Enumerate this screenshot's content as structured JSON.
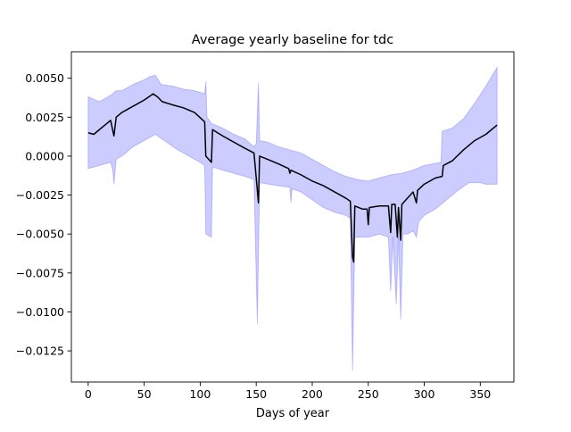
{
  "chart_data": {
    "type": "line",
    "title": "Average yearly baseline for tdc",
    "xlabel": "Days of year",
    "ylabel": "",
    "xlim": [
      -15,
      380
    ],
    "ylim": [
      -0.0145,
      0.0067
    ],
    "xticks": [
      0,
      50,
      100,
      150,
      200,
      250,
      300,
      350
    ],
    "xtick_labels": [
      "0",
      "50",
      "100",
      "150",
      "200",
      "250",
      "300",
      "350"
    ],
    "yticks": [
      0.005,
      0.0025,
      0.0,
      -0.0025,
      -0.005,
      -0.0075,
      -0.01,
      -0.0125
    ],
    "ytick_labels": [
      "0.0050",
      "0.0025",
      "0.0000",
      "−0.0025",
      "−0.0050",
      "−0.0075",
      "−0.0100",
      "−0.0125"
    ],
    "grid": false,
    "line_color": "#000000",
    "band_color": "#0000ff",
    "series": [
      {
        "values": [
          [
            0,
            0.0015
          ],
          [
            5,
            0.0014
          ],
          [
            10,
            0.0017
          ],
          [
            15,
            0.002
          ],
          [
            20,
            0.0023
          ],
          [
            23,
            0.0013
          ],
          [
            25,
            0.0025
          ],
          [
            30,
            0.0028
          ],
          [
            40,
            0.0032
          ],
          [
            50,
            0.0036
          ],
          [
            58,
            0.004
          ],
          [
            62,
            0.0038
          ],
          [
            66,
            0.0035
          ],
          [
            75,
            0.0033
          ],
          [
            85,
            0.0031
          ],
          [
            95,
            0.0028
          ],
          [
            104,
            0.0022
          ],
          [
            105,
            0.0
          ],
          [
            110,
            -0.0004
          ],
          [
            111,
            0.0017
          ],
          [
            120,
            0.0013
          ],
          [
            130,
            0.0009
          ],
          [
            140,
            0.0005
          ],
          [
            148,
            0.0002
          ],
          [
            152,
            -0.003
          ],
          [
            153,
            0.0
          ],
          [
            160,
            -0.0002
          ],
          [
            170,
            -0.0005
          ],
          [
            179,
            -0.0008
          ],
          [
            180,
            -0.0011
          ],
          [
            181,
            -0.0009
          ],
          [
            190,
            -0.0012
          ],
          [
            200,
            -0.0016
          ],
          [
            210,
            -0.0019
          ],
          [
            220,
            -0.0023
          ],
          [
            230,
            -0.0027
          ],
          [
            234,
            -0.0029
          ],
          [
            236,
            -0.0065
          ],
          [
            237,
            -0.0068
          ],
          [
            238,
            -0.0032
          ],
          [
            245,
            -0.0034
          ],
          [
            249,
            -0.0034
          ],
          [
            250,
            -0.0044
          ],
          [
            251,
            -0.0033
          ],
          [
            260,
            -0.0032
          ],
          [
            268,
            -0.0032
          ],
          [
            270,
            -0.0049
          ],
          [
            271,
            -0.0031
          ],
          [
            274,
            -0.0031
          ],
          [
            276,
            -0.0052
          ],
          [
            277,
            -0.0033
          ],
          [
            279,
            -0.0054
          ],
          [
            280,
            -0.0031
          ],
          [
            285,
            -0.0027
          ],
          [
            290,
            -0.0023
          ],
          [
            293,
            -0.003
          ],
          [
            294,
            -0.0022
          ],
          [
            300,
            -0.0018
          ],
          [
            310,
            -0.0014
          ],
          [
            316,
            -0.0013
          ],
          [
            317,
            -0.0006
          ],
          [
            325,
            -0.0003
          ],
          [
            335,
            0.0004
          ],
          [
            345,
            0.001
          ],
          [
            355,
            0.0014
          ],
          [
            365,
            0.002
          ]
        ]
      }
    ],
    "band_upper": [
      [
        0,
        0.0038
      ],
      [
        10,
        0.0035
      ],
      [
        20,
        0.0039
      ],
      [
        25,
        0.0042
      ],
      [
        30,
        0.0042
      ],
      [
        40,
        0.0046
      ],
      [
        50,
        0.0049
      ],
      [
        55,
        0.0051
      ],
      [
        60,
        0.0052
      ],
      [
        65,
        0.0046
      ],
      [
        75,
        0.0045
      ],
      [
        85,
        0.0043
      ],
      [
        95,
        0.0042
      ],
      [
        104,
        0.004
      ],
      [
        105,
        0.0048
      ],
      [
        106,
        0.0025
      ],
      [
        110,
        0.0021
      ],
      [
        120,
        0.0018
      ],
      [
        130,
        0.0014
      ],
      [
        140,
        0.0011
      ],
      [
        148,
        0.0006
      ],
      [
        150,
        0.0008
      ],
      [
        152,
        0.0047
      ],
      [
        153,
        0.001
      ],
      [
        160,
        0.0009
      ],
      [
        170,
        0.0006
      ],
      [
        180,
        0.0004
      ],
      [
        190,
        0.0002
      ],
      [
        200,
        -0.0002
      ],
      [
        210,
        -0.0006
      ],
      [
        220,
        -0.001
      ],
      [
        230,
        -0.0013
      ],
      [
        240,
        -0.0015
      ],
      [
        250,
        -0.0016
      ],
      [
        260,
        -0.0014
      ],
      [
        270,
        -0.0012
      ],
      [
        280,
        -0.0011
      ],
      [
        290,
        -0.0009
      ],
      [
        300,
        -0.0006
      ],
      [
        315,
        -0.0004
      ],
      [
        316,
        0.0016
      ],
      [
        325,
        0.0018
      ],
      [
        335,
        0.0024
      ],
      [
        345,
        0.0034
      ],
      [
        355,
        0.0045
      ],
      [
        365,
        0.0057
      ]
    ],
    "band_lower": [
      [
        0,
        -0.0008
      ],
      [
        10,
        -0.0006
      ],
      [
        20,
        -0.0004
      ],
      [
        22,
        -0.0009
      ],
      [
        23,
        -0.0018
      ],
      [
        25,
        -0.0002
      ],
      [
        30,
        0.0
      ],
      [
        40,
        0.0006
      ],
      [
        50,
        0.001
      ],
      [
        60,
        0.0014
      ],
      [
        70,
        0.0009
      ],
      [
        80,
        0.0004
      ],
      [
        90,
        0.0
      ],
      [
        100,
        -0.0004
      ],
      [
        104,
        -0.0006
      ],
      [
        105,
        -0.005
      ],
      [
        110,
        -0.0052
      ],
      [
        111,
        -0.0007
      ],
      [
        120,
        -0.0009
      ],
      [
        130,
        -0.0011
      ],
      [
        140,
        -0.0013
      ],
      [
        148,
        -0.0015
      ],
      [
        151,
        -0.0108
      ],
      [
        153,
        -0.0017
      ],
      [
        170,
        -0.0019
      ],
      [
        180,
        -0.002
      ],
      [
        181,
        -0.003
      ],
      [
        182,
        -0.0021
      ],
      [
        190,
        -0.0023
      ],
      [
        200,
        -0.0028
      ],
      [
        210,
        -0.0033
      ],
      [
        220,
        -0.0036
      ],
      [
        230,
        -0.0038
      ],
      [
        234,
        -0.004
      ],
      [
        236,
        -0.0138
      ],
      [
        238,
        -0.0052
      ],
      [
        250,
        -0.0052
      ],
      [
        260,
        -0.005
      ],
      [
        268,
        -0.0052
      ],
      [
        270,
        -0.0087
      ],
      [
        272,
        -0.0052
      ],
      [
        275,
        -0.0095
      ],
      [
        277,
        -0.0052
      ],
      [
        279,
        -0.0105
      ],
      [
        281,
        -0.005
      ],
      [
        285,
        -0.005
      ],
      [
        290,
        -0.0048
      ],
      [
        293,
        -0.0052
      ],
      [
        295,
        -0.0042
      ],
      [
        300,
        -0.0038
      ],
      [
        310,
        -0.0034
      ],
      [
        320,
        -0.0028
      ],
      [
        330,
        -0.0022
      ],
      [
        340,
        -0.0017
      ],
      [
        350,
        -0.0017
      ],
      [
        355,
        -0.0018
      ],
      [
        365,
        -0.0018
      ]
    ]
  }
}
